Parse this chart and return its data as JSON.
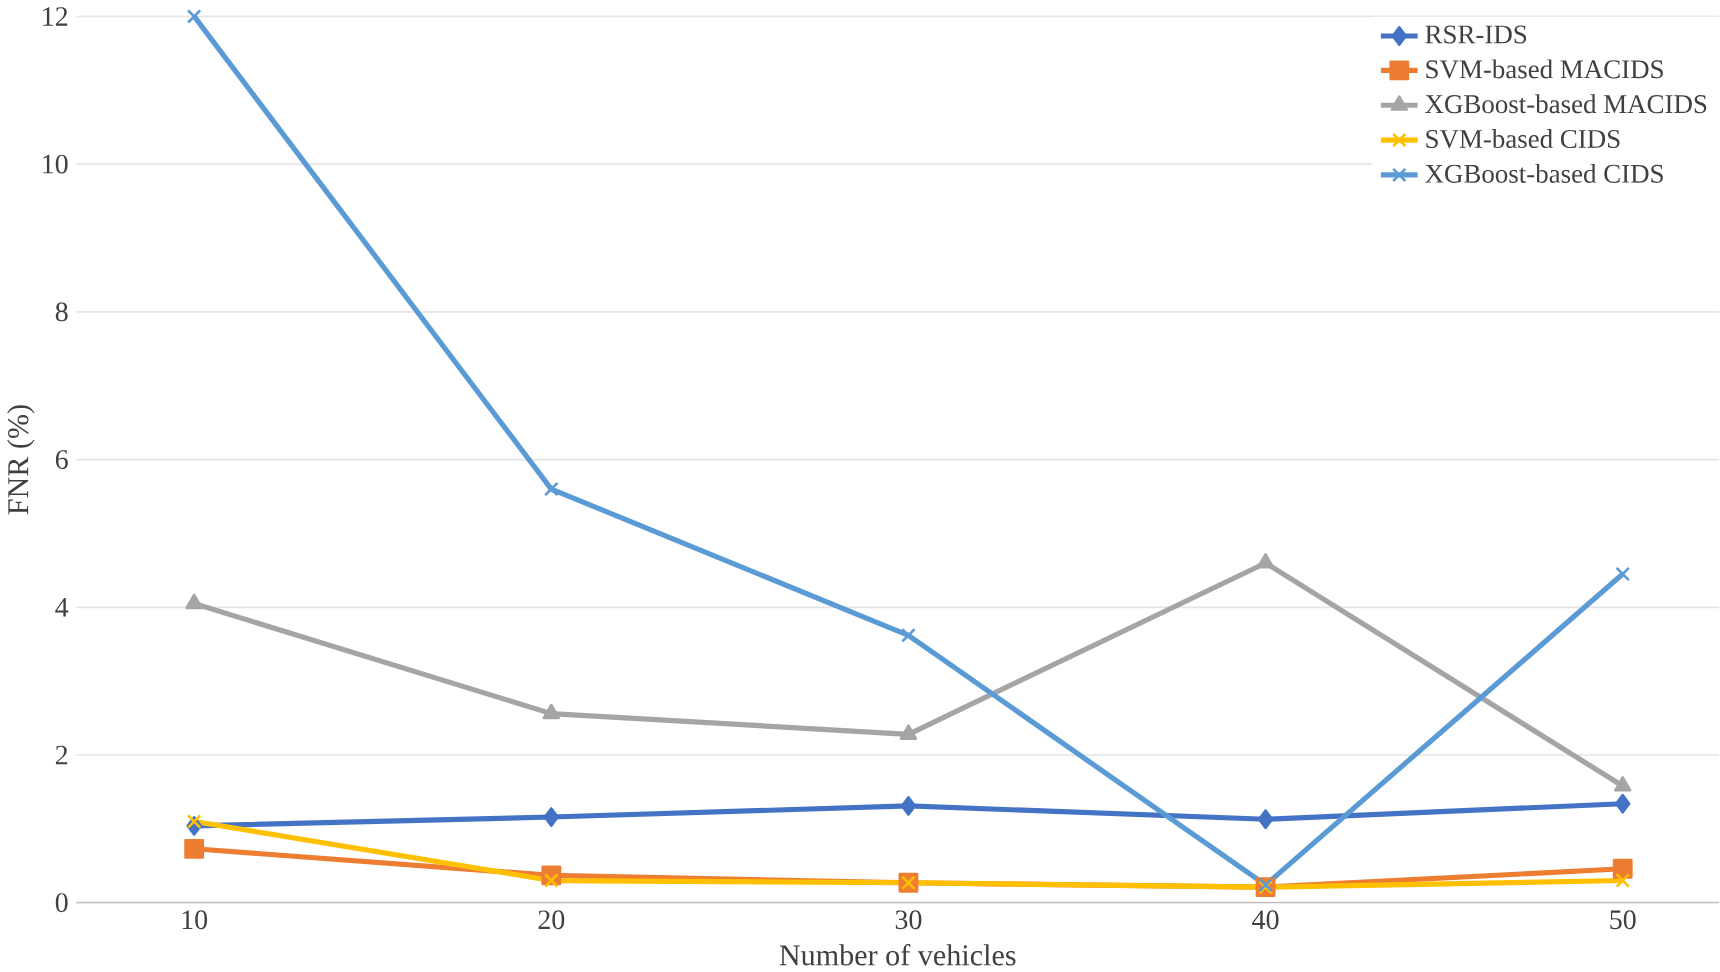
{
  "chart_data": {
    "type": "line",
    "xlabel": "Number of vehicles",
    "ylabel": "FNR (%)",
    "categories": [
      "10",
      "20",
      "30",
      "40",
      "50"
    ],
    "series": [
      {
        "name": "RSR-IDS",
        "color": "#4472c4",
        "marker": "diamond",
        "values": [
          1.04,
          1.16,
          1.31,
          1.13,
          1.34
        ]
      },
      {
        "name": "SVM-based MACIDS",
        "color": "#ed7d31",
        "marker": "square",
        "values": [
          0.73,
          0.37,
          0.27,
          0.21,
          0.46
        ]
      },
      {
        "name": "XGBoost-based MACIDS",
        "color": "#a5a5a5",
        "marker": "triangle",
        "values": [
          4.05,
          2.56,
          2.28,
          4.6,
          1.58
        ]
      },
      {
        "name": "SVM-based CIDS",
        "color": "#ffc000",
        "marker": "cross",
        "values": [
          1.1,
          0.3,
          0.27,
          0.21,
          0.3
        ]
      },
      {
        "name": "XGBoost-based CIDS",
        "color": "#5b9bd5",
        "marker": "cross",
        "values": [
          12.0,
          5.6,
          3.62,
          0.24,
          4.45
        ]
      }
    ],
    "ylim": [
      0,
      12
    ],
    "yticks": [
      0,
      2,
      4,
      6,
      8,
      10,
      12
    ],
    "grid": "y",
    "legend": "top right",
    "line_style": "solid"
  }
}
